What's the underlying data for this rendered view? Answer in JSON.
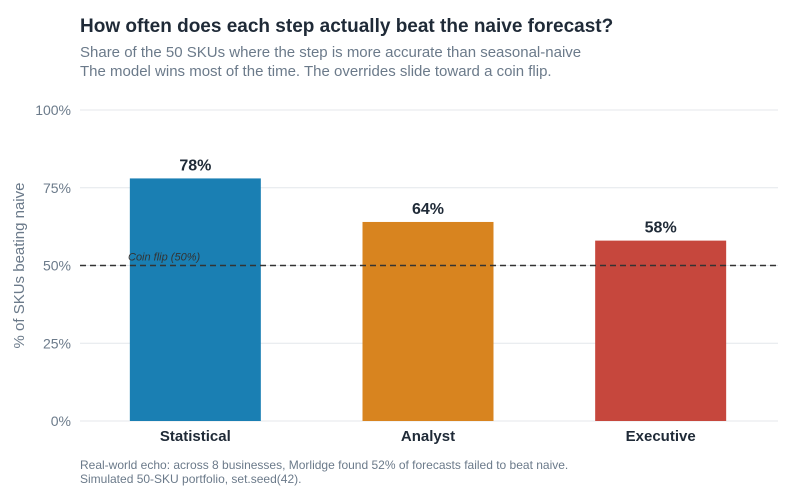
{
  "chart_data": {
    "type": "bar",
    "title": "How often does each step actually beat the naive forecast?",
    "subtitle": [
      "Share of the 50 SKUs where the step is more accurate than seasonal-naive",
      "The model wins most of the time. The overrides slide toward a coin flip."
    ],
    "caption": [
      "Real-world echo: across 8 businesses, Morlidge found 52% of forecasts failed to beat naive.",
      "Simulated 50-SKU portfolio, set.seed(42)."
    ],
    "categories": [
      "Statistical",
      "Analyst",
      "Executive"
    ],
    "values": [
      78,
      64,
      58
    ],
    "value_labels": [
      "78%",
      "64%",
      "58%"
    ],
    "colors": [
      "#1a7fb3",
      "#d8841f",
      "#c6473d"
    ],
    "ylabel": "% of SKUs beating naive",
    "ylim": [
      0,
      100
    ],
    "yticks": [
      0,
      25,
      50,
      75,
      100
    ],
    "ytick_labels": [
      "0%",
      "25%",
      "50%",
      "75%",
      "100%"
    ],
    "reference_line": {
      "value": 50,
      "label": "Coin flip (50%)",
      "style": "dashed"
    },
    "grid": "horizontal",
    "legend": "none"
  }
}
